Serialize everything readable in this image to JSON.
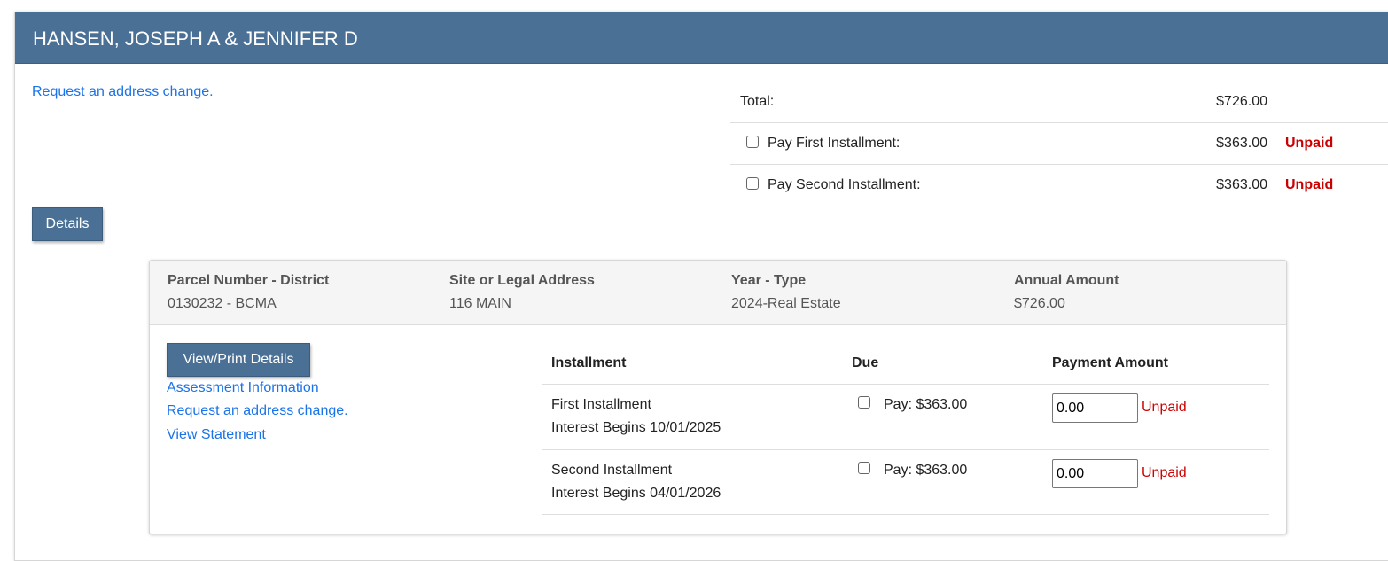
{
  "header": {
    "title": "HANSEN, JOSEPH A & JENNIFER D"
  },
  "top": {
    "address_link": "Request an address change.",
    "details_button": "Details"
  },
  "summary": {
    "total_label": "Total:",
    "total_amount": "$726.00",
    "rows": [
      {
        "label": "Pay First Installment:",
        "amount": "$363.00",
        "status": "Unpaid",
        "checked": false
      },
      {
        "label": "Pay Second Installment:",
        "amount": "$363.00",
        "status": "Unpaid",
        "checked": false
      }
    ]
  },
  "parcel": {
    "columns": [
      {
        "header": "Parcel Number - District",
        "value": "0130232 - BCMA"
      },
      {
        "header": "Site or Legal Address",
        "value": "116 MAIN"
      },
      {
        "header": "Year - Type",
        "value": "2024-Real Estate"
      },
      {
        "header": "Annual Amount",
        "value": "$726.00"
      }
    ],
    "view_print_button": "View/Print Details",
    "links": [
      "Assessment Information",
      "Request an address change.",
      "View Statement"
    ],
    "table": {
      "headers": [
        "Installment",
        "Due",
        "Payment Amount"
      ],
      "rows": [
        {
          "name": "First Installment",
          "interest": "Interest Begins 10/01/2025",
          "due": "Pay: $363.00",
          "payment": "0.00",
          "status": "Unpaid"
        },
        {
          "name": "Second Installment",
          "interest": "Interest Begins 04/01/2026",
          "due": "Pay: $363.00",
          "payment": "0.00",
          "status": "Unpaid"
        }
      ]
    }
  },
  "colors": {
    "header": "#4a7096",
    "link": "#1a73e8",
    "unpaid": "#cc0000"
  }
}
